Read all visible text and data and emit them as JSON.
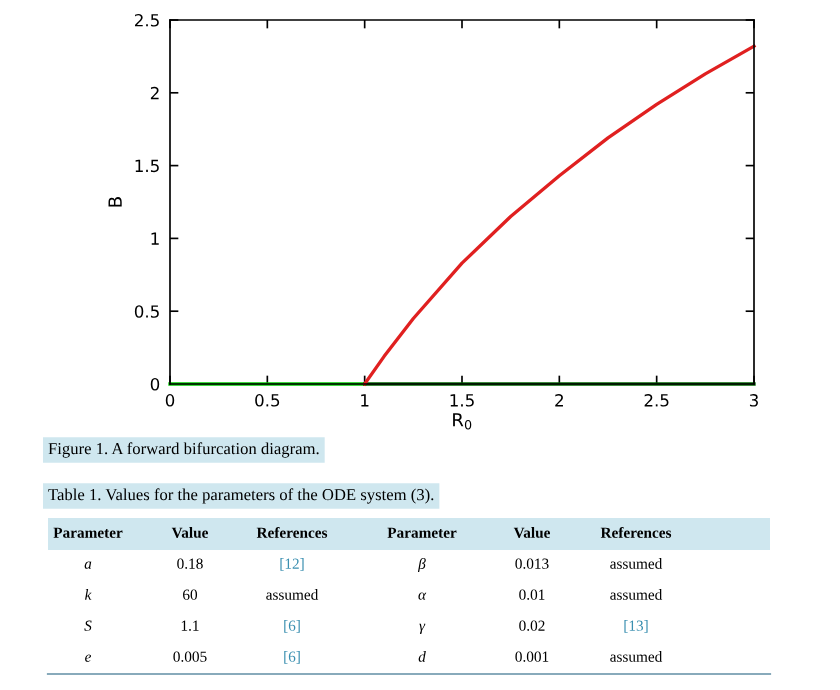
{
  "chart_data": {
    "type": "line",
    "xlabel": "R$_{0}$",
    "ylabel": "B",
    "xlim": [
      0,
      3
    ],
    "ylim": [
      0,
      2.5
    ],
    "xticks": [
      0,
      0.5,
      1,
      1.5,
      2,
      2.5,
      3
    ],
    "yticks": [
      0,
      0.5,
      1,
      1.5,
      2,
      2.5
    ],
    "grid": false,
    "marker": "none",
    "line_style": "solid",
    "series": [
      {
        "color": "#00cc00",
        "x": [
          0,
          1
        ],
        "values": [
          0,
          0
        ]
      },
      {
        "color": "#006400",
        "x": [
          1,
          3
        ],
        "values": [
          0,
          0
        ]
      },
      {
        "color": "#e02020",
        "x": [
          1,
          1.1,
          1.25,
          1.5,
          1.75,
          2,
          2.25,
          2.5,
          2.75,
          3
        ],
        "values": [
          0,
          0.19,
          0.45,
          0.83,
          1.15,
          1.43,
          1.69,
          1.92,
          2.13,
          2.32
        ]
      }
    ],
    "annotations": [
      "Figure 1. A forward bifurcation diagram.",
      "Table 1. Values for the parameters of the ODE system (3).",
      "Parameter",
      "Value",
      "References",
      "Parameter",
      "Value",
      "References",
      "a",
      "0.18",
      "[12]",
      "β",
      "0.013",
      "assumed",
      "k",
      "60",
      "assumed",
      "α",
      "0.01",
      "assumed",
      "S",
      "1.1",
      "[6]",
      "γ",
      "0.02",
      "[13]",
      "e",
      "0.005",
      "[6]",
      "d",
      "0.001",
      "assumed"
    ]
  }
}
